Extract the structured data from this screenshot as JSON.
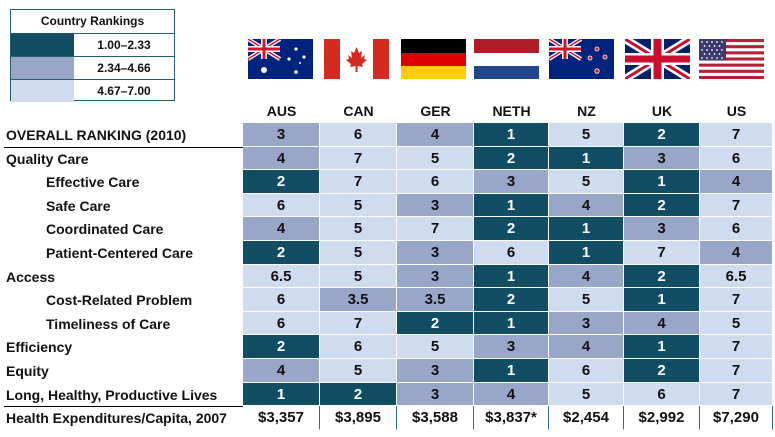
{
  "legend": {
    "title": "Country Rankings",
    "items": [
      {
        "label": "1.00–2.33",
        "tier": 1
      },
      {
        "label": "2.34–4.66",
        "tier": 2
      },
      {
        "label": "4.67–7.00",
        "tier": 3
      }
    ]
  },
  "colors": {
    "tier1": "#124e63",
    "tier2": "#98a7c7",
    "tier3": "#cfdcf0"
  },
  "countries": [
    {
      "code": "AUS",
      "flag": "australia-flag-icon"
    },
    {
      "code": "CAN",
      "flag": "canada-flag-icon"
    },
    {
      "code": "GER",
      "flag": "germany-flag-icon"
    },
    {
      "code": "NETH",
      "flag": "netherlands-flag-icon"
    },
    {
      "code": "NZ",
      "flag": "new-zealand-flag-icon"
    },
    {
      "code": "UK",
      "flag": "uk-flag-icon"
    },
    {
      "code": "US",
      "flag": "usa-flag-icon"
    }
  ],
  "chart_data": {
    "type": "table",
    "columns": [
      "AUS",
      "CAN",
      "GER",
      "NETH",
      "NZ",
      "UK",
      "US"
    ],
    "rows": [
      {
        "label": "OVERALL RANKING (2010)",
        "sub": false,
        "values": [
          "3",
          "6",
          "4",
          "1",
          "5",
          "2",
          "7"
        ],
        "tiers": [
          2,
          3,
          2,
          1,
          3,
          1,
          3
        ]
      },
      {
        "label": "Quality Care",
        "sub": false,
        "values": [
          "4",
          "7",
          "5",
          "2",
          "1",
          "3",
          "6"
        ],
        "tiers": [
          2,
          3,
          3,
          1,
          1,
          2,
          3
        ]
      },
      {
        "label": "Effective Care",
        "sub": true,
        "values": [
          "2",
          "7",
          "6",
          "3",
          "5",
          "1",
          "4"
        ],
        "tiers": [
          1,
          3,
          3,
          2,
          3,
          1,
          2
        ]
      },
      {
        "label": "Safe Care",
        "sub": true,
        "values": [
          "6",
          "5",
          "3",
          "1",
          "4",
          "2",
          "7"
        ],
        "tiers": [
          3,
          3,
          2,
          1,
          2,
          1,
          3
        ]
      },
      {
        "label": "Coordinated Care",
        "sub": true,
        "values": [
          "4",
          "5",
          "7",
          "2",
          "1",
          "3",
          "6"
        ],
        "tiers": [
          2,
          3,
          3,
          1,
          1,
          2,
          3
        ]
      },
      {
        "label": "Patient-Centered Care",
        "sub": true,
        "values": [
          "2",
          "5",
          "3",
          "6",
          "1",
          "7",
          "4"
        ],
        "tiers": [
          1,
          3,
          2,
          3,
          1,
          3,
          2
        ]
      },
      {
        "label": "Access",
        "sub": false,
        "values": [
          "6.5",
          "5",
          "3",
          "1",
          "4",
          "2",
          "6.5"
        ],
        "tiers": [
          3,
          3,
          2,
          1,
          2,
          1,
          3
        ]
      },
      {
        "label": "Cost-Related Problem",
        "sub": true,
        "values": [
          "6",
          "3.5",
          "3.5",
          "2",
          "5",
          "1",
          "7"
        ],
        "tiers": [
          3,
          2,
          2,
          1,
          3,
          1,
          3
        ]
      },
      {
        "label": "Timeliness of Care",
        "sub": true,
        "values": [
          "6",
          "7",
          "2",
          "1",
          "3",
          "4",
          "5"
        ],
        "tiers": [
          3,
          3,
          1,
          1,
          2,
          2,
          3
        ]
      },
      {
        "label": "Efficiency",
        "sub": false,
        "values": [
          "2",
          "6",
          "5",
          "3",
          "4",
          "1",
          "7"
        ],
        "tiers": [
          1,
          3,
          3,
          2,
          2,
          1,
          3
        ]
      },
      {
        "label": "Equity",
        "sub": false,
        "values": [
          "4",
          "5",
          "3",
          "1",
          "6",
          "2",
          "7"
        ],
        "tiers": [
          2,
          3,
          2,
          1,
          3,
          1,
          3
        ]
      },
      {
        "label": "Long, Healthy, Productive Lives",
        "sub": false,
        "values": [
          "1",
          "2",
          "3",
          "4",
          "5",
          "6",
          "7"
        ],
        "tiers": [
          1,
          1,
          2,
          2,
          3,
          3,
          3
        ]
      },
      {
        "label": "Health Expenditures/Capita, 2007",
        "sub": false,
        "values": [
          "$3,357",
          "$3,895",
          "$3,588",
          "$3,837*",
          "$2,454",
          "$2,992",
          "$7,290"
        ],
        "tiers": [
          0,
          0,
          0,
          0,
          0,
          0,
          0
        ]
      }
    ]
  }
}
